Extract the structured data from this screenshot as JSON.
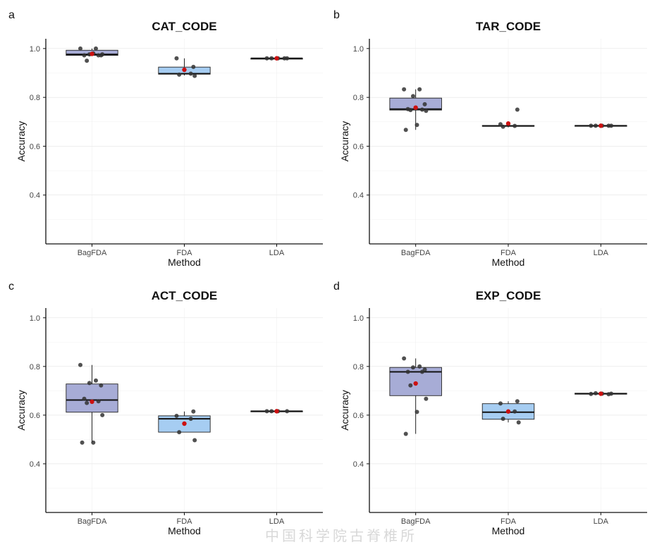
{
  "figure": {
    "watermark": "中国科学院古脊椎所",
    "colors": {
      "BagFDA": "#a7acd6",
      "FDA": "#a6cdf2",
      "LDA": "#b8cde8",
      "points": "#333333",
      "mean": "#cc1111",
      "axis": "#111111",
      "grid": "#e3e3e3"
    }
  },
  "chart_data": [
    {
      "type": "box",
      "panel_label": "a",
      "title": "CAT_CODE",
      "xlabel": "Method",
      "ylabel": "Accuracy",
      "categories": [
        "BagFDA",
        "FDA",
        "LDA"
      ],
      "yticks": [
        0.4,
        0.6,
        0.8,
        1.0
      ],
      "ytick_labels": [
        "0.4",
        "0.6",
        "0.8",
        "1.0"
      ],
      "ylim": [
        0.2,
        1.04
      ],
      "boxes": [
        {
          "q1": 0.972,
          "median": 0.976,
          "q3": 0.993,
          "whisker_low": 0.972,
          "whisker_high": 1.0,
          "mean": 0.978
        },
        {
          "q1": 0.895,
          "median": 0.897,
          "q3": 0.924,
          "whisker_low": 0.89,
          "whisker_high": 0.96,
          "mean": 0.913
        },
        {
          "q1": 0.96,
          "median": 0.96,
          "q3": 0.96,
          "whisker_low": 0.96,
          "whisker_high": 0.96,
          "mean": 0.96
        }
      ],
      "points": [
        [
          1.0,
          1.0,
          0.976,
          0.972,
          0.972,
          0.972,
          0.95,
          0.976,
          0.98
        ],
        [
          0.925,
          0.96,
          0.897,
          0.893,
          0.888
        ],
        [
          0.96,
          0.96,
          0.96,
          0.96,
          0.96
        ]
      ]
    },
    {
      "type": "box",
      "panel_label": "b",
      "title": "TAR_CODE",
      "xlabel": "Method",
      "ylabel": "Accuracy",
      "categories": [
        "BagFDA",
        "FDA",
        "LDA"
      ],
      "yticks": [
        0.4,
        0.6,
        0.8,
        1.0
      ],
      "ytick_labels": [
        "0.4",
        "0.6",
        "0.8",
        "1.0"
      ],
      "ylim": [
        0.2,
        1.04
      ],
      "boxes": [
        {
          "q1": 0.748,
          "median": 0.752,
          "q3": 0.797,
          "whisker_low": 0.667,
          "whisker_high": 0.833,
          "mean": 0.758
        },
        {
          "q1": 0.682,
          "median": 0.683,
          "q3": 0.685,
          "whisker_low": 0.677,
          "whisker_high": 0.685,
          "mean": 0.693
        },
        {
          "q1": 0.683,
          "median": 0.684,
          "q3": 0.685,
          "whisker_low": 0.683,
          "whisker_high": 0.685,
          "mean": 0.684
        }
      ],
      "points": [
        [
          0.833,
          0.833,
          0.805,
          0.772,
          0.752,
          0.75,
          0.748,
          0.745,
          0.687,
          0.667
        ],
        [
          0.75,
          0.69,
          0.683,
          0.68
        ],
        [
          0.684,
          0.684,
          0.684,
          0.684,
          0.684
        ]
      ]
    },
    {
      "type": "box",
      "panel_label": "c",
      "title": "ACT_CODE",
      "xlabel": "Method",
      "ylabel": "Accuracy",
      "categories": [
        "BagFDA",
        "FDA",
        "LDA"
      ],
      "yticks": [
        0.4,
        0.6,
        0.8,
        1.0
      ],
      "ytick_labels": [
        "0.4",
        "0.6",
        "0.8",
        "1.0"
      ],
      "ylim": [
        0.2,
        1.04
      ],
      "boxes": [
        {
          "q1": 0.612,
          "median": 0.662,
          "q3": 0.728,
          "whisker_low": 0.487,
          "whisker_high": 0.806,
          "mean": 0.655
        },
        {
          "q1": 0.53,
          "median": 0.585,
          "q3": 0.597,
          "whisker_low": 0.53,
          "whisker_high": 0.615,
          "mean": 0.565
        },
        {
          "q1": 0.615,
          "median": 0.616,
          "q3": 0.617,
          "whisker_low": 0.615,
          "whisker_high": 0.617,
          "mean": 0.616
        }
      ],
      "points": [
        [
          0.806,
          0.742,
          0.732,
          0.722,
          0.667,
          0.657,
          0.65,
          0.6,
          0.487,
          0.487
        ],
        [
          0.615,
          0.597,
          0.585,
          0.53,
          0.497
        ],
        [
          0.616,
          0.616,
          0.616,
          0.616
        ]
      ]
    },
    {
      "type": "box",
      "panel_label": "d",
      "title": "EXP_CODE",
      "xlabel": "Method",
      "ylabel": "Accuracy",
      "categories": [
        "BagFDA",
        "FDA",
        "LDA"
      ],
      "yticks": [
        0.4,
        0.6,
        0.8,
        1.0
      ],
      "ytick_labels": [
        "0.4",
        "0.6",
        "0.8",
        "1.0"
      ],
      "ylim": [
        0.2,
        1.04
      ],
      "boxes": [
        {
          "q1": 0.68,
          "median": 0.778,
          "q3": 0.796,
          "whisker_low": 0.523,
          "whisker_high": 0.833,
          "mean": 0.73
        },
        {
          "q1": 0.583,
          "median": 0.612,
          "q3": 0.647,
          "whisker_low": 0.57,
          "whisker_high": 0.657,
          "mean": 0.615
        },
        {
          "q1": 0.686,
          "median": 0.688,
          "q3": 0.69,
          "whisker_low": 0.686,
          "whisker_high": 0.69,
          "mean": 0.688
        }
      ],
      "points": [
        [
          0.833,
          0.8,
          0.796,
          0.787,
          0.778,
          0.778,
          0.722,
          0.667,
          0.613,
          0.523
        ],
        [
          0.657,
          0.648,
          0.615,
          0.585,
          0.57
        ],
        [
          0.69,
          0.688,
          0.688,
          0.687,
          0.686
        ]
      ]
    }
  ]
}
